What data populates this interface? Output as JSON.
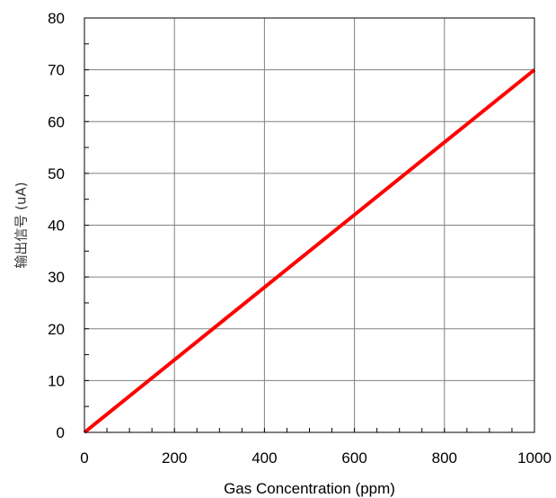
{
  "chart_data": {
    "type": "line",
    "title": "",
    "xlabel": "Gas Concentration (ppm)",
    "ylabel": "输出信号 (uA)",
    "xlim": [
      0,
      1000
    ],
    "ylim": [
      0,
      80
    ],
    "x_ticks": [
      0,
      200,
      400,
      600,
      800,
      1000
    ],
    "y_ticks": [
      0,
      10,
      20,
      30,
      40,
      50,
      60,
      70,
      80
    ],
    "x_tick_labels": [
      "0",
      "200",
      "400",
      "600",
      "800",
      "1000"
    ],
    "y_tick_labels": [
      "0",
      "10",
      "20",
      "30",
      "40",
      "50",
      "60",
      "70",
      "80"
    ],
    "grid": true,
    "legend": "none",
    "series": [
      {
        "color": "#ff0000",
        "x": [
          0,
          1000
        ],
        "y": [
          0,
          70
        ]
      }
    ]
  }
}
